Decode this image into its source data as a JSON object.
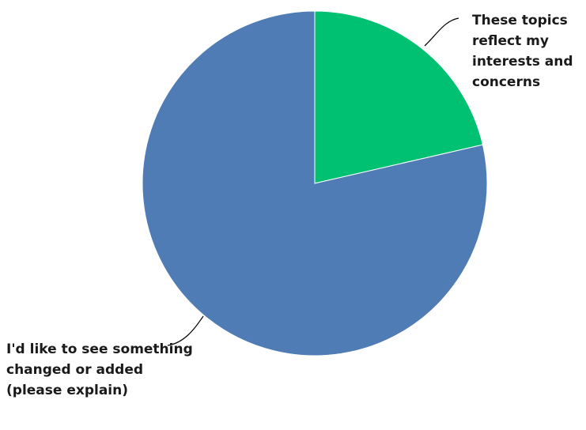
{
  "chart_data": {
    "type": "pie",
    "title": "",
    "slices": [
      {
        "label": "These topics reflect my interests and concerns",
        "value": 21.4,
        "color": "#00c071"
      },
      {
        "label": "I'd like to see something changed or added (please explain)",
        "value": 78.6,
        "color": "#4f7cb5"
      }
    ],
    "start_angle_deg": 0,
    "direction": "clockwise",
    "legend": "none"
  }
}
